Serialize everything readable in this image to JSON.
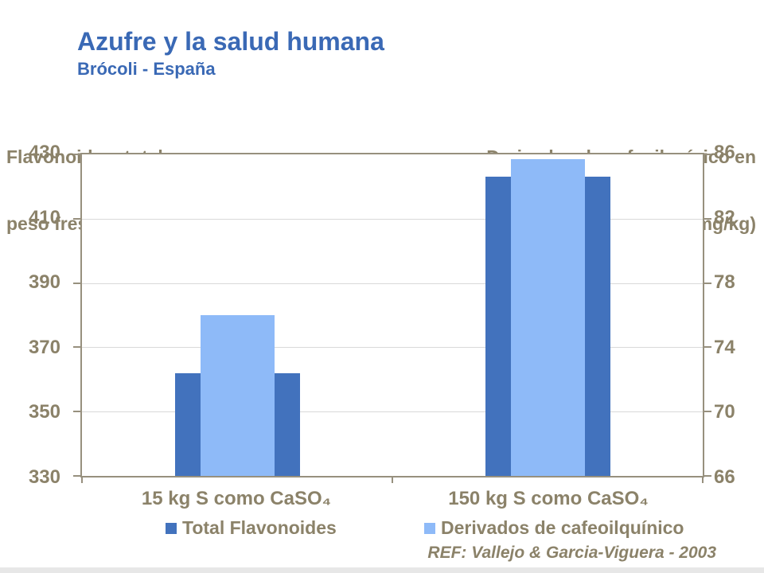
{
  "slide": {
    "title": "Azufre y la salud humana",
    "subtitle": "Brócoli - España",
    "ref": "REF: Vallejo & Garcia-Viguera - 2003"
  },
  "colors": {
    "title_blue": "#3A69B5",
    "dark_blue": "#4272BD",
    "light_blue": "#8EBAF8",
    "axis_text": "#8B8269",
    "axis_line": "#97907E",
    "gridline": "#D9D9D9",
    "footer_bar": "#E7E7E7"
  },
  "chart_data": {
    "type": "bar",
    "categories": [
      "15 kg S como CaSO₄",
      "150 kg S como CaSO₄"
    ],
    "series": [
      {
        "name": "Total Flavonoides",
        "axis": "left",
        "color_key": "dark_blue",
        "values": [
          362,
          423
        ]
      },
      {
        "name": "Derivados de cafeoilquínico",
        "axis": "right",
        "color_key": "light_blue",
        "values": [
          76,
          85.7
        ]
      }
    ],
    "left_axis": {
      "title_lines": [
        "Flavonoidos  totales en",
        "peso fresco (mg/kg)"
      ],
      "min": 330,
      "max": 430,
      "ticks": [
        430,
        410,
        390,
        370,
        350,
        330
      ]
    },
    "right_axis": {
      "title_lines": [
        "Derivados de cafeoilquínico en",
        "peso fresco (mg/kg)"
      ],
      "min": 66,
      "max": 86,
      "ticks": [
        86,
        82,
        78,
        74,
        70,
        66
      ]
    },
    "grid": true,
    "legend_position": "bottom"
  }
}
